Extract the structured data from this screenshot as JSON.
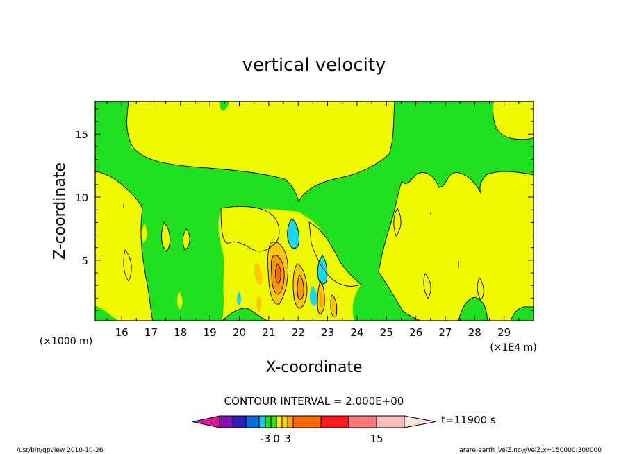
{
  "chart_data": {
    "type": "heatmap",
    "title": "vertical velocity",
    "xlabel": "X-coordinate",
    "ylabel": "Z-coordinate",
    "x_unit_left": "(×1000 m)",
    "x_unit_right": "(×1E4 m)",
    "xlim": [
      15.1,
      30.0
    ],
    "ylim": [
      0.2,
      17.6
    ],
    "x_ticks": [
      16,
      17,
      18,
      19,
      20,
      21,
      22,
      23,
      24,
      25,
      26,
      27,
      28,
      29
    ],
    "y_ticks": [
      5,
      10,
      15
    ],
    "contour_interval_label": "CONTOUR INTERVAL = 2.000E+00",
    "time_label": "t=11900 s",
    "colorbar": {
      "colors": [
        "#e0149c",
        "#8a12b0",
        "#2a1fb8",
        "#0a6de0",
        "#17c7ee",
        "#1ee01e",
        "#3cdc14",
        "#eef000",
        "#ffd200",
        "#ffa800",
        "#ff6a00",
        "#ff1c1c",
        "#ff7a7a",
        "#ffbcbc",
        "#ffe4dc"
      ],
      "tick_labels": [
        "-3",
        "0",
        "3",
        "15"
      ]
    },
    "field_colors": {
      "background": "#f0fb00",
      "green": "#1ee01e",
      "cyan": "#17d8f0",
      "orange_light": "#ffc800",
      "orange": "#ff9a00",
      "orange_dark": "#ff6a00"
    }
  },
  "footer": {
    "left": "/usr/bin/gpview   2010-10-26",
    "right": "arare-earth_VelZ.nc@VelZ,x=150000:300000"
  }
}
